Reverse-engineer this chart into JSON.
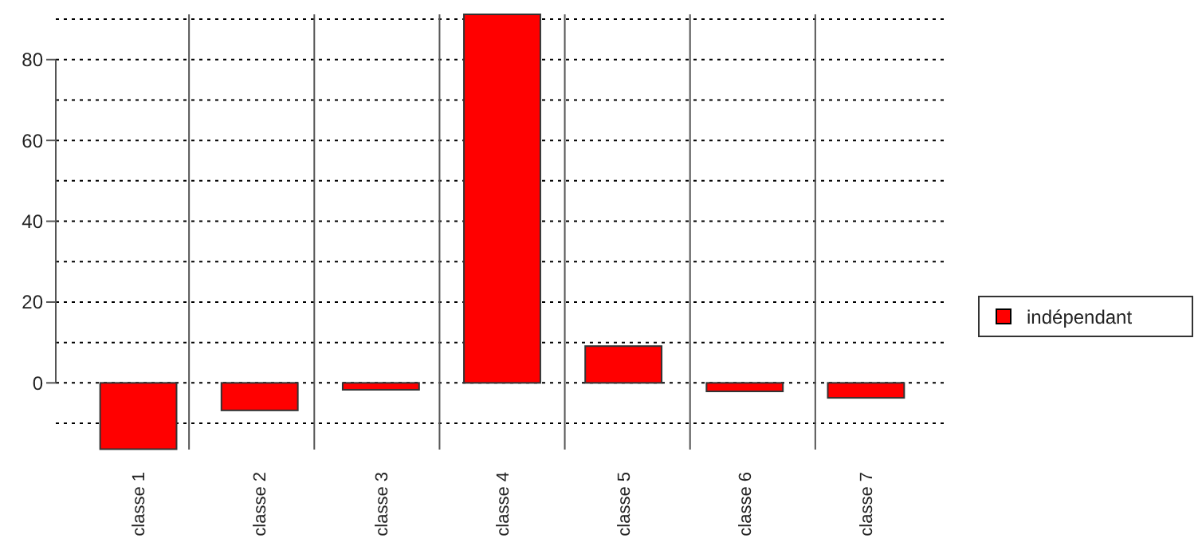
{
  "chart_data": {
    "type": "bar",
    "categories": [
      "classe 1",
      "classe 2",
      "classe 3",
      "classe 4",
      "classe 5",
      "classe 6",
      "classe 7"
    ],
    "series": [
      {
        "name": "indépendant",
        "color": "#ff0000",
        "values": [
          -16.4,
          -6.8,
          -1.7,
          91.2,
          9.1,
          -2.1,
          -3.7
        ]
      }
    ],
    "ylim": [
      -16.5,
      91.2
    ],
    "yticks": [
      {
        "value": -10,
        "label": null
      },
      0,
      {
        "value": 10,
        "label": null
      },
      20,
      {
        "value": 30,
        "label": null
      },
      40,
      {
        "value": 50,
        "label": null
      },
      60,
      {
        "value": 70,
        "label": null
      },
      80,
      {
        "value": 90,
        "label": null
      }
    ],
    "grid": "y",
    "legend": "right"
  }
}
